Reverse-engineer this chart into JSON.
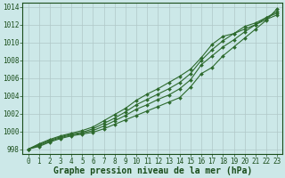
{
  "xlabel": "Graphe pression niveau de la mer (hPa)",
  "x": [
    0,
    1,
    2,
    3,
    4,
    5,
    6,
    7,
    8,
    9,
    10,
    11,
    12,
    13,
    14,
    15,
    16,
    17,
    18,
    19,
    20,
    21,
    22,
    23
  ],
  "series": [
    [
      998.0,
      998.3,
      998.8,
      999.2,
      999.5,
      999.7,
      999.9,
      1000.3,
      1000.8,
      1001.3,
      1001.8,
      1002.3,
      1002.8,
      1003.3,
      1003.8,
      1005.0,
      1006.5,
      1007.2,
      1008.5,
      1009.5,
      1010.5,
      1011.5,
      1012.5,
      1013.8
    ],
    [
      998.0,
      998.4,
      998.9,
      999.3,
      999.6,
      999.8,
      1000.1,
      1000.6,
      1001.2,
      1001.8,
      1002.5,
      1003.0,
      1003.6,
      1004.1,
      1004.8,
      1005.8,
      1007.5,
      1008.5,
      1009.5,
      1010.3,
      1011.2,
      1012.0,
      1012.8,
      1013.5
    ],
    [
      998.0,
      998.5,
      999.0,
      999.4,
      999.7,
      999.9,
      1000.3,
      1000.9,
      1001.5,
      1002.2,
      1003.0,
      1003.6,
      1004.2,
      1004.8,
      1005.5,
      1006.5,
      1008.0,
      1009.2,
      1010.2,
      1011.0,
      1011.8,
      1012.2,
      1012.8,
      1013.3
    ],
    [
      998.0,
      998.6,
      999.1,
      999.5,
      999.8,
      1000.1,
      1000.5,
      1001.2,
      1001.9,
      1002.6,
      1003.5,
      1004.2,
      1004.8,
      1005.5,
      1006.2,
      1007.0,
      1008.3,
      1009.8,
      1010.7,
      1011.0,
      1011.5,
      1012.0,
      1012.6,
      1013.1
    ]
  ],
  "line_color": "#2d6a2d",
  "marker": "D",
  "markersize": 2.0,
  "linewidth": 0.8,
  "bg_color": "#cce8e8",
  "grid_color": "#b0c8c8",
  "ylim": [
    997.5,
    1014.5
  ],
  "yticks": [
    998,
    1000,
    1002,
    1004,
    1006,
    1008,
    1010,
    1012,
    1014
  ],
  "xticks": [
    0,
    1,
    2,
    3,
    4,
    5,
    6,
    7,
    8,
    9,
    10,
    11,
    12,
    13,
    14,
    15,
    16,
    17,
    18,
    19,
    20,
    21,
    22,
    23
  ],
  "tick_fontsize": 5.5,
  "label_fontsize": 7,
  "label_color": "#1a4d1a",
  "tick_color": "#1a4d1a"
}
